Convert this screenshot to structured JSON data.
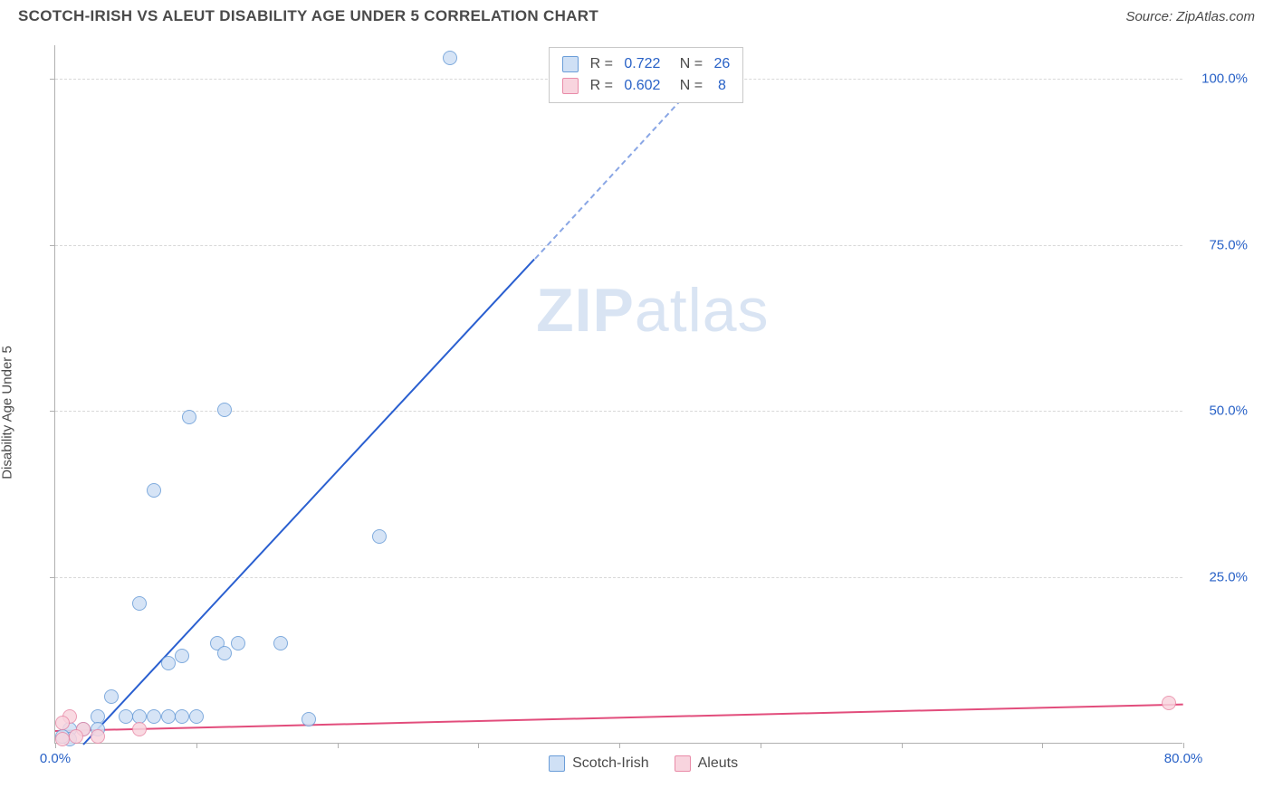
{
  "header": {
    "title": "SCOTCH-IRISH VS ALEUT DISABILITY AGE UNDER 5 CORRELATION CHART",
    "source": "Source: ZipAtlas.com"
  },
  "chart": {
    "type": "scatter",
    "yaxis_label": "Disability Age Under 5",
    "xlim": [
      0,
      80
    ],
    "ylim": [
      0,
      105
    ],
    "xtick_step": 10,
    "xtick_labels": {
      "0": "0.0%",
      "80": "80.0%"
    },
    "ytick_positions": [
      25,
      50,
      75,
      100
    ],
    "ytick_labels": [
      "25.0%",
      "50.0%",
      "75.0%",
      "100.0%"
    ],
    "grid_color": "#d8d8d8",
    "axis_color": "#b0b0b0",
    "background_color": "#ffffff",
    "tick_label_color": "#2962c7",
    "watermark_text_1": "ZIP",
    "watermark_text_2": "atlas",
    "watermark_color": "#d9e4f3",
    "series": [
      {
        "name": "Scotch-Irish",
        "fill": "#cfe0f5",
        "stroke": "#6a9dd8",
        "marker_radius": 8,
        "trend_color": "#2a5fd0",
        "trend_x1": 2,
        "trend_y1": 0,
        "trend_x2": 34,
        "trend_y2": 73,
        "trend_dash_x2": 47,
        "trend_dash_y2": 103,
        "points": [
          {
            "x": 28,
            "y": 103
          },
          {
            "x": 12,
            "y": 50
          },
          {
            "x": 9.5,
            "y": 49
          },
          {
            "x": 7,
            "y": 38
          },
          {
            "x": 23,
            "y": 31
          },
          {
            "x": 6,
            "y": 21
          },
          {
            "x": 11.5,
            "y": 15
          },
          {
            "x": 13,
            "y": 15
          },
          {
            "x": 16,
            "y": 15
          },
          {
            "x": 9,
            "y": 13
          },
          {
            "x": 12,
            "y": 13.5
          },
          {
            "x": 8,
            "y": 12
          },
          {
            "x": 4,
            "y": 7
          },
          {
            "x": 18,
            "y": 3.5
          },
          {
            "x": 3,
            "y": 4
          },
          {
            "x": 5,
            "y": 4
          },
          {
            "x": 6,
            "y": 4
          },
          {
            "x": 7,
            "y": 4
          },
          {
            "x": 8,
            "y": 4
          },
          {
            "x": 9,
            "y": 4
          },
          {
            "x": 10,
            "y": 4
          },
          {
            "x": 1,
            "y": 2
          },
          {
            "x": 2,
            "y": 2
          },
          {
            "x": 3,
            "y": 2
          },
          {
            "x": 1,
            "y": 0.5
          },
          {
            "x": 0.5,
            "y": 1
          }
        ]
      },
      {
        "name": "Aleuts",
        "fill": "#f8d4de",
        "stroke": "#e98ba8",
        "marker_radius": 8,
        "trend_color": "#e24d7c",
        "trend_x1": 0,
        "trend_y1": 2,
        "trend_x2": 80,
        "trend_y2": 6,
        "points": [
          {
            "x": 79,
            "y": 6
          },
          {
            "x": 6,
            "y": 2
          },
          {
            "x": 1,
            "y": 4
          },
          {
            "x": 2,
            "y": 2
          },
          {
            "x": 3,
            "y": 1
          },
          {
            "x": 0.5,
            "y": 3
          },
          {
            "x": 1.5,
            "y": 1
          },
          {
            "x": 0.5,
            "y": 0.5
          }
        ]
      }
    ],
    "rbox": {
      "rows": [
        {
          "swatch_fill": "#cfe0f5",
          "swatch_stroke": "#6a9dd8",
          "r": "0.722",
          "n": "26"
        },
        {
          "swatch_fill": "#f8d4de",
          "swatch_stroke": "#e98ba8",
          "r": "0.602",
          "n": "8"
        }
      ],
      "r_color": "#2962c7",
      "n_color": "#2962c7",
      "text_color": "#4a4a4a"
    },
    "legend_bottom": [
      {
        "swatch_fill": "#cfe0f5",
        "swatch_stroke": "#6a9dd8",
        "label": "Scotch-Irish"
      },
      {
        "swatch_fill": "#f8d4de",
        "swatch_stroke": "#e98ba8",
        "label": "Aleuts"
      }
    ]
  }
}
